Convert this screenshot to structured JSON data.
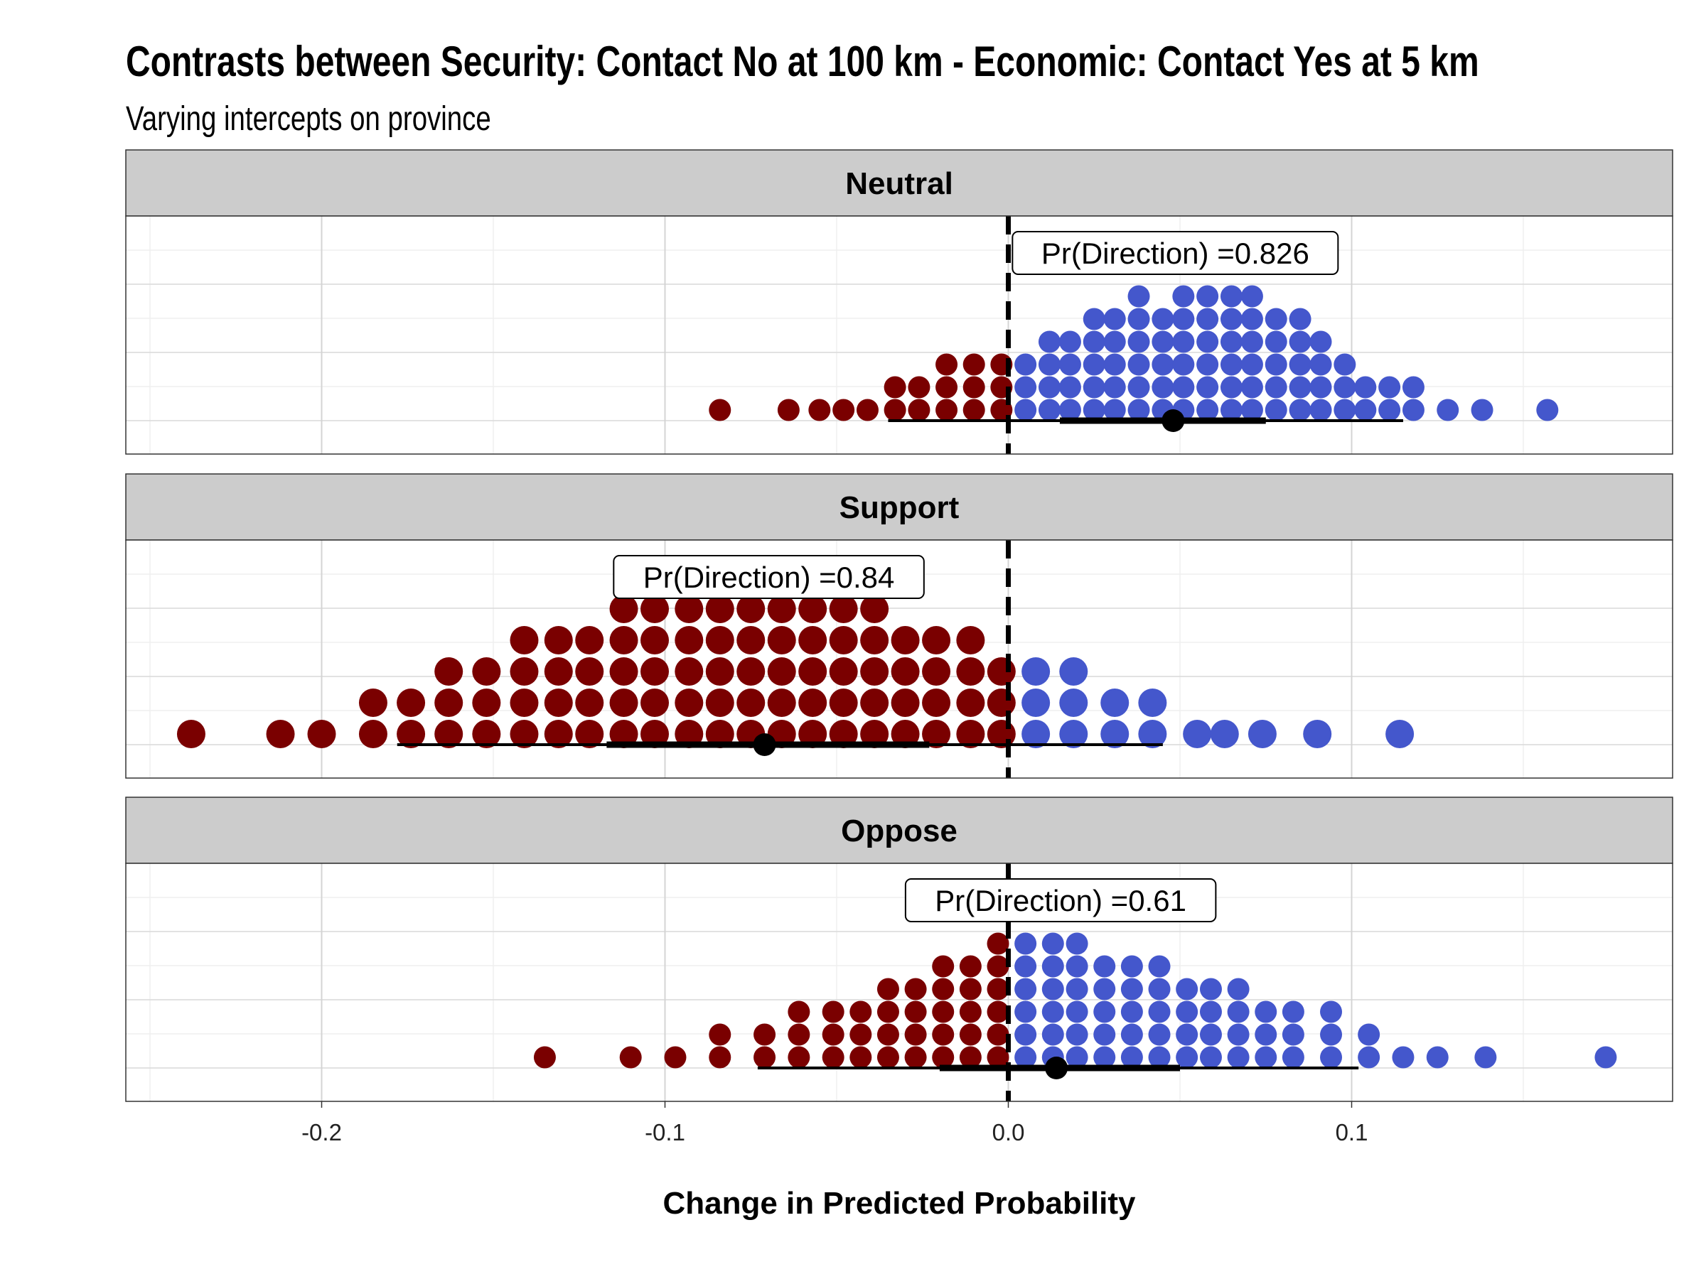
{
  "chart_data": {
    "type": "dotplot",
    "title": "Contrasts between Security: Contact No at 100 km - Economic: Contact Yes at 5 km",
    "subtitle": "Varying intercepts on province",
    "xlabel": "Change in Predicted Probability",
    "xlim": [
      -0.258,
      0.193
    ],
    "x_ticks": [
      -0.2,
      -0.1,
      0.0,
      0.1
    ],
    "x_tick_labels": [
      "-0.2",
      "-0.1",
      "0.0",
      "0.1"
    ],
    "reference_line": 0.0,
    "grid": true,
    "colors": {
      "negative": "#7a0000",
      "positive": "#4457cc",
      "interval": "#000000",
      "strip_bg": "#cccccc"
    },
    "panels": [
      {
        "name": "Neutral",
        "label": "Pr(Direction) =0.826",
        "median": 0.048,
        "interval_inner": [
          0.015,
          0.075
        ],
        "interval_outer": [
          -0.035,
          0.115
        ],
        "stacks": [
          {
            "x": -0.084,
            "n": 1
          },
          {
            "x": -0.064,
            "n": 1
          },
          {
            "x": -0.055,
            "n": 1
          },
          {
            "x": -0.048,
            "n": 1
          },
          {
            "x": -0.041,
            "n": 1
          },
          {
            "x": -0.033,
            "n": 2
          },
          {
            "x": -0.026,
            "n": 2
          },
          {
            "x": -0.018,
            "n": 3
          },
          {
            "x": -0.01,
            "n": 3
          },
          {
            "x": -0.002,
            "n": 3
          },
          {
            "x": 0.005,
            "n": 3
          },
          {
            "x": 0.012,
            "n": 4
          },
          {
            "x": 0.018,
            "n": 4
          },
          {
            "x": 0.025,
            "n": 5
          },
          {
            "x": 0.031,
            "n": 5
          },
          {
            "x": 0.038,
            "n": 6
          },
          {
            "x": 0.045,
            "n": 5
          },
          {
            "x": 0.051,
            "n": 6
          },
          {
            "x": 0.058,
            "n": 6
          },
          {
            "x": 0.065,
            "n": 6
          },
          {
            "x": 0.071,
            "n": 6
          },
          {
            "x": 0.078,
            "n": 5
          },
          {
            "x": 0.085,
            "n": 5
          },
          {
            "x": 0.091,
            "n": 4
          },
          {
            "x": 0.098,
            "n": 3
          },
          {
            "x": 0.104,
            "n": 2
          },
          {
            "x": 0.111,
            "n": 2
          },
          {
            "x": 0.118,
            "n": 2
          },
          {
            "x": 0.128,
            "n": 1
          },
          {
            "x": 0.138,
            "n": 1
          },
          {
            "x": 0.157,
            "n": 1
          }
        ]
      },
      {
        "name": "Support",
        "label": "Pr(Direction) =0.84",
        "median": -0.071,
        "interval_inner": [
          -0.117,
          -0.023
        ],
        "interval_outer": [
          -0.178,
          0.045
        ],
        "stacks": [
          {
            "x": -0.238,
            "n": 1
          },
          {
            "x": -0.212,
            "n": 1
          },
          {
            "x": -0.2,
            "n": 1
          },
          {
            "x": -0.185,
            "n": 2
          },
          {
            "x": -0.174,
            "n": 2
          },
          {
            "x": -0.163,
            "n": 3
          },
          {
            "x": -0.152,
            "n": 3
          },
          {
            "x": -0.141,
            "n": 4
          },
          {
            "x": -0.131,
            "n": 4
          },
          {
            "x": -0.122,
            "n": 4
          },
          {
            "x": -0.112,
            "n": 5
          },
          {
            "x": -0.103,
            "n": 5
          },
          {
            "x": -0.093,
            "n": 5
          },
          {
            "x": -0.084,
            "n": 5
          },
          {
            "x": -0.075,
            "n": 5
          },
          {
            "x": -0.066,
            "n": 5
          },
          {
            "x": -0.057,
            "n": 5
          },
          {
            "x": -0.048,
            "n": 5
          },
          {
            "x": -0.039,
            "n": 5
          },
          {
            "x": -0.03,
            "n": 4
          },
          {
            "x": -0.021,
            "n": 4
          },
          {
            "x": -0.011,
            "n": 4
          },
          {
            "x": -0.002,
            "n": 3
          },
          {
            "x": 0.008,
            "n": 3
          },
          {
            "x": 0.019,
            "n": 3
          },
          {
            "x": 0.031,
            "n": 2
          },
          {
            "x": 0.042,
            "n": 2
          },
          {
            "x": 0.055,
            "n": 1
          },
          {
            "x": 0.063,
            "n": 1
          },
          {
            "x": 0.074,
            "n": 1
          },
          {
            "x": 0.09,
            "n": 1
          },
          {
            "x": 0.114,
            "n": 1
          }
        ]
      },
      {
        "name": "Oppose",
        "label": "Pr(Direction) =0.61",
        "median": 0.014,
        "interval_inner": [
          -0.02,
          0.05
        ],
        "interval_outer": [
          -0.073,
          0.102
        ],
        "stacks": [
          {
            "x": -0.135,
            "n": 1
          },
          {
            "x": -0.11,
            "n": 1
          },
          {
            "x": -0.097,
            "n": 1
          },
          {
            "x": -0.084,
            "n": 2
          },
          {
            "x": -0.071,
            "n": 2
          },
          {
            "x": -0.061,
            "n": 3
          },
          {
            "x": -0.051,
            "n": 3
          },
          {
            "x": -0.043,
            "n": 3
          },
          {
            "x": -0.035,
            "n": 4
          },
          {
            "x": -0.027,
            "n": 4
          },
          {
            "x": -0.019,
            "n": 5
          },
          {
            "x": -0.011,
            "n": 5
          },
          {
            "x": -0.003,
            "n": 6
          },
          {
            "x": 0.005,
            "n": 6
          },
          {
            "x": 0.013,
            "n": 6
          },
          {
            "x": 0.02,
            "n": 6
          },
          {
            "x": 0.028,
            "n": 5
          },
          {
            "x": 0.036,
            "n": 5
          },
          {
            "x": 0.044,
            "n": 5
          },
          {
            "x": 0.052,
            "n": 4
          },
          {
            "x": 0.059,
            "n": 4
          },
          {
            "x": 0.067,
            "n": 4
          },
          {
            "x": 0.075,
            "n": 3
          },
          {
            "x": 0.083,
            "n": 3
          },
          {
            "x": 0.094,
            "n": 3
          },
          {
            "x": 0.105,
            "n": 2
          },
          {
            "x": 0.115,
            "n": 1
          },
          {
            "x": 0.125,
            "n": 1
          },
          {
            "x": 0.139,
            "n": 1
          },
          {
            "x": 0.174,
            "n": 1
          }
        ]
      }
    ]
  }
}
